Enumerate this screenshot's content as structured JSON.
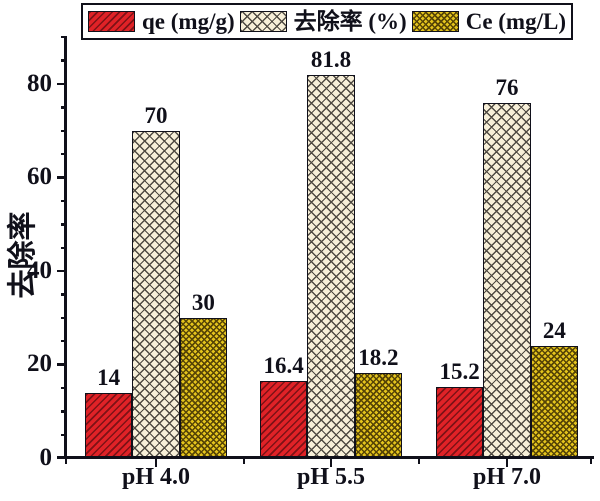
{
  "chart_data": {
    "type": "bar",
    "title": "",
    "xlabel": "",
    "ylabel": "去除率",
    "categories": [
      "pH 4.0",
      "pH 5.5",
      "pH 7.0"
    ],
    "series": [
      {
        "name": "qe (mg/g)",
        "values": [
          14,
          16.4,
          15.2
        ],
        "fill": "#e02227",
        "hatch": "diagonal",
        "hatch_color": "#7d1216"
      },
      {
        "name": "去除率 (%)",
        "values": [
          70,
          81.8,
          76
        ],
        "fill": "#f7efd8",
        "hatch": "crosshatch",
        "hatch_color": "#4f4a42"
      },
      {
        "name": "Ce (mg/L)",
        "values": [
          30,
          18.2,
          24
        ],
        "fill": "#e4c41d",
        "hatch": "dense-crosshatch",
        "hatch_color": "#574506"
      }
    ],
    "bar_value_labels": [
      [
        "14",
        "16.4",
        "15.2"
      ],
      [
        "70",
        "81.8",
        "76"
      ],
      [
        "30",
        "18.2",
        "24"
      ]
    ],
    "ylim": [
      0,
      90
    ],
    "yticks_major": [
      0,
      20,
      40,
      60,
      80
    ],
    "ytick_labels": [
      "0",
      "20",
      "40",
      "60",
      "80"
    ],
    "ytick_minor_step": 5,
    "grid": false,
    "legend_position": "top",
    "axis_color": "#10101a",
    "text_color": "#10101a"
  }
}
